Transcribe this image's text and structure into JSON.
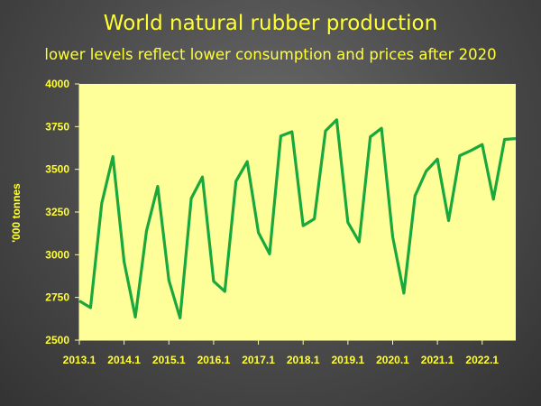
{
  "chart_data": {
    "type": "line",
    "title": "World natural rubber production",
    "subtitle": "lower levels reflect lower consumption and prices after 2020",
    "xlabel": "",
    "ylabel": "'000  tonnes",
    "ylim": [
      2500,
      4000
    ],
    "yticks": [
      2500,
      2750,
      3000,
      3250,
      3500,
      3750,
      4000
    ],
    "xtick_labels": [
      "2013.1",
      "2014.1",
      "2015.1",
      "2016.1",
      "2017.1",
      "2018.1",
      "2019.1",
      "2020.1",
      "2021.1",
      "2022.1"
    ],
    "grid": false,
    "colors": {
      "line": "#1aa83c",
      "plot_bg": "#ffff99",
      "text": "#ffff33"
    },
    "series": [
      {
        "values": [
          2730,
          2690,
          3300,
          3575,
          2960,
          2635,
          3140,
          3400,
          2850,
          2630,
          3330,
          3455,
          2845,
          2785,
          3430,
          3545,
          3130,
          3005,
          3695,
          3720,
          3170,
          3210,
          3725,
          3790,
          3190,
          3075,
          3690,
          3740,
          3105,
          2775,
          3345,
          3490,
          3560,
          3200,
          3580,
          3610,
          3645,
          3325,
          3675,
          3680
        ]
      }
    ]
  }
}
